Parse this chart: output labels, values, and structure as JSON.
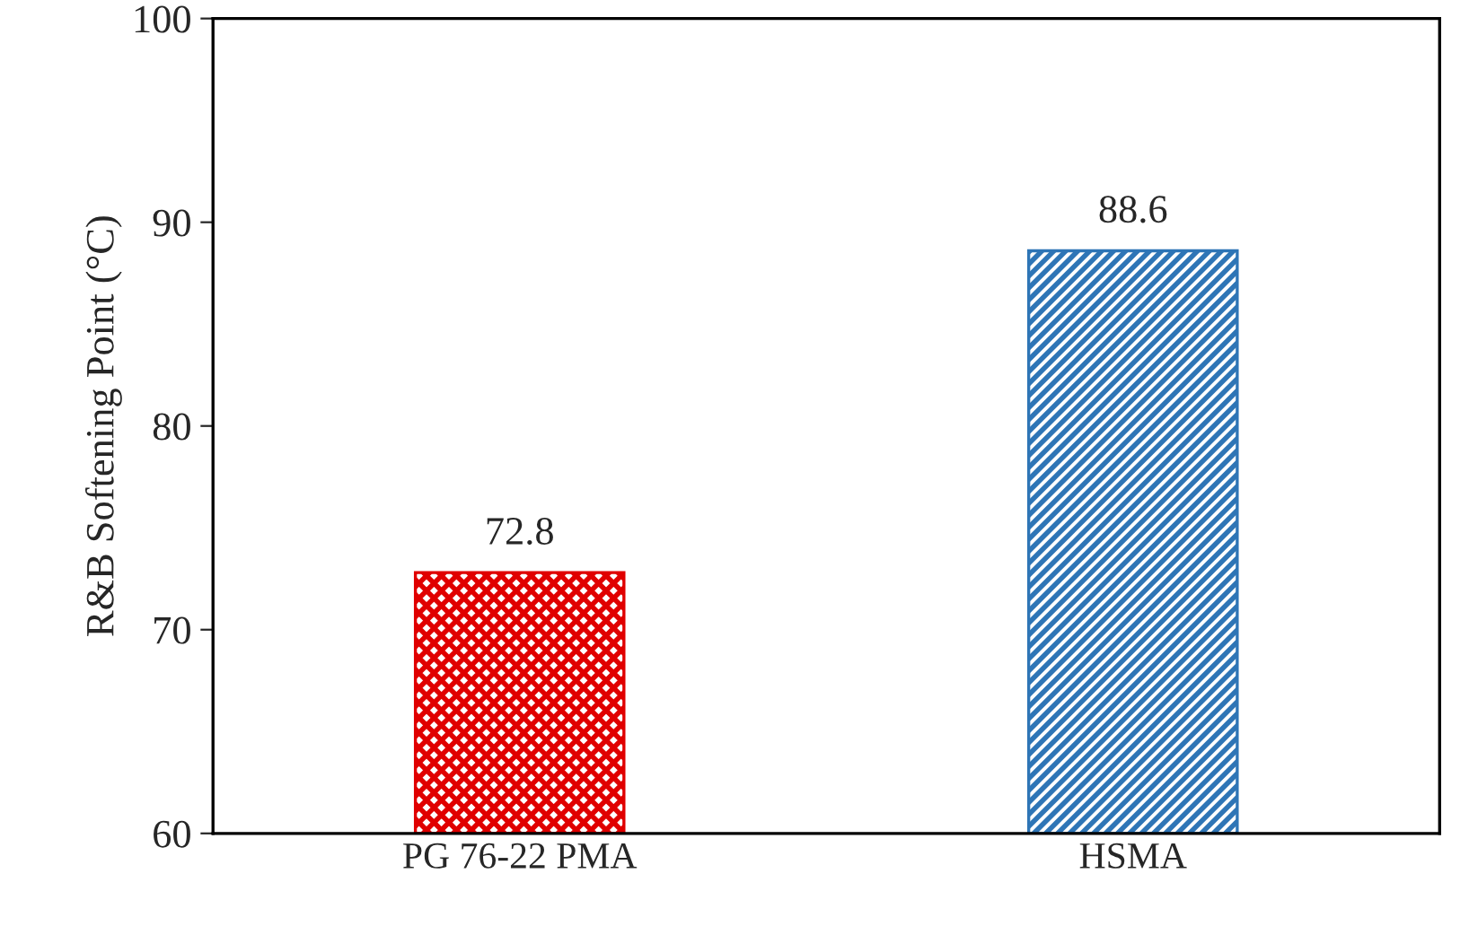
{
  "chart_data": {
    "type": "bar",
    "ylabel": "R&B Softening Point (°C)",
    "categories": [
      "PG 76-22 PMA",
      "HSMA"
    ],
    "values": [
      72.8,
      88.6
    ],
    "colors": [
      "#e00000",
      "#2e75b6"
    ],
    "ylim": [
      60,
      100
    ],
    "yticks": [
      60,
      70,
      80,
      90,
      100
    ],
    "data_labels": true,
    "grid": false,
    "legend": false
  }
}
